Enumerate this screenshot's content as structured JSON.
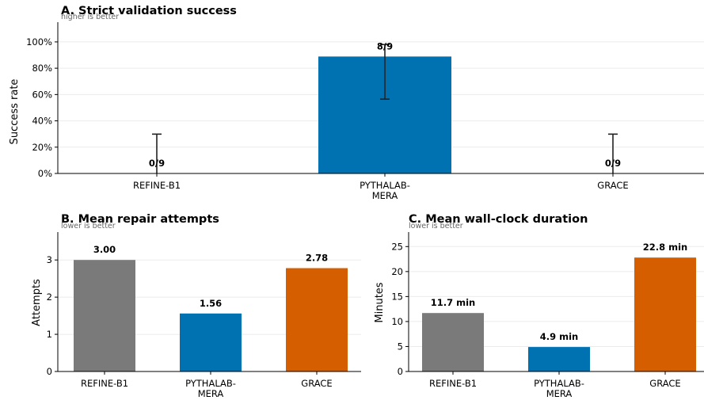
{
  "chart_data": [
    {
      "id": "A",
      "type": "bar",
      "title": "A. Strict validation success",
      "subtitle": "higher is better",
      "ylabel": "Success rate",
      "categories": [
        "REFINE-B1",
        "PYTHALAB-\nMERA",
        "GRACE"
      ],
      "values": [
        0.0,
        0.889,
        0.0
      ],
      "error_low": [
        0.0,
        0.565,
        0.0
      ],
      "error_high": [
        0.299,
        0.98,
        0.299
      ],
      "data_labels": [
        "0/9",
        "8/9",
        "0/9"
      ],
      "ylim": [
        0,
        1.15
      ],
      "yticks": [
        0,
        0.2,
        0.4,
        0.6,
        0.8,
        1.0
      ],
      "ytick_labels": [
        "0%",
        "20%",
        "40%",
        "60%",
        "80%",
        "100%"
      ],
      "colors": [
        "#7a7a7a",
        "#0072b2",
        "#d55e00"
      ],
      "grid": true
    },
    {
      "id": "B",
      "type": "bar",
      "title": "B. Mean repair attempts",
      "subtitle": "lower is better",
      "ylabel": "Attempts",
      "categories": [
        "REFINE-B1",
        "PYTHALAB-\nMERA",
        "GRACE"
      ],
      "values": [
        3.0,
        1.56,
        2.78
      ],
      "data_labels": [
        "3.00",
        "1.56",
        "2.78"
      ],
      "ylim": [
        0,
        3.75
      ],
      "yticks": [
        0,
        1,
        2,
        3
      ],
      "ytick_labels": [
        "0",
        "1",
        "2",
        "3"
      ],
      "colors": [
        "#7a7a7a",
        "#0072b2",
        "#d55e00"
      ],
      "grid": true
    },
    {
      "id": "C",
      "type": "bar",
      "title": "C. Mean wall-clock duration",
      "subtitle": "lower is better",
      "ylabel": "Minutes",
      "categories": [
        "REFINE-B1",
        "PYTHALAB-\nMERA",
        "GRACE"
      ],
      "values": [
        11.7,
        4.9,
        22.8
      ],
      "data_labels": [
        "11.7 min",
        "4.9 min",
        "22.8 min"
      ],
      "ylim": [
        0,
        27.9
      ],
      "yticks": [
        0,
        5,
        10,
        15,
        20,
        25
      ],
      "ytick_labels": [
        "0",
        "5",
        "10",
        "15",
        "20",
        "25"
      ],
      "colors": [
        "#7a7a7a",
        "#0072b2",
        "#d55e00"
      ],
      "grid": true
    }
  ]
}
